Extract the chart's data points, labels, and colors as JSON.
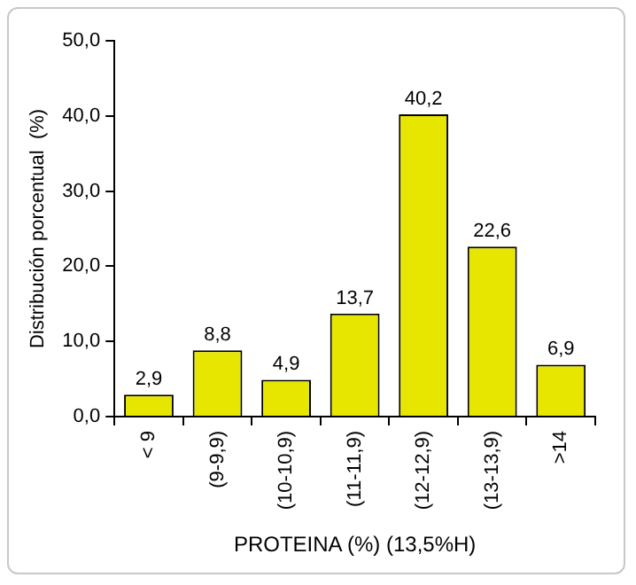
{
  "chart_data": {
    "type": "bar",
    "xlabel": "PROTEINA (%) (13,5%H)",
    "ylabel": "Distribución porcentual  (%)",
    "categories": [
      "< 9",
      "(9-9,9)",
      "(10-10,9)",
      "(11-11,9)",
      "(12-12,9)",
      "(13-13,9)",
      ">14"
    ],
    "values": [
      2.9,
      8.8,
      4.9,
      13.7,
      40.2,
      22.6,
      6.9
    ],
    "value_labels": [
      "2,9",
      "8,8",
      "4,9",
      "13,7",
      "40,2",
      "22,6",
      "6,9"
    ],
    "color": "#e6e600",
    "ylim": [
      0,
      50
    ],
    "yticks": [
      {
        "value": 0,
        "label": "0,0"
      },
      {
        "value": 10,
        "label": "10,0"
      },
      {
        "value": 20,
        "label": "20,0"
      },
      {
        "value": 30,
        "label": "30,0"
      },
      {
        "value": 40,
        "label": "40,0"
      },
      {
        "value": 50,
        "label": "50,0"
      }
    ],
    "grid": false,
    "legend": false
  }
}
